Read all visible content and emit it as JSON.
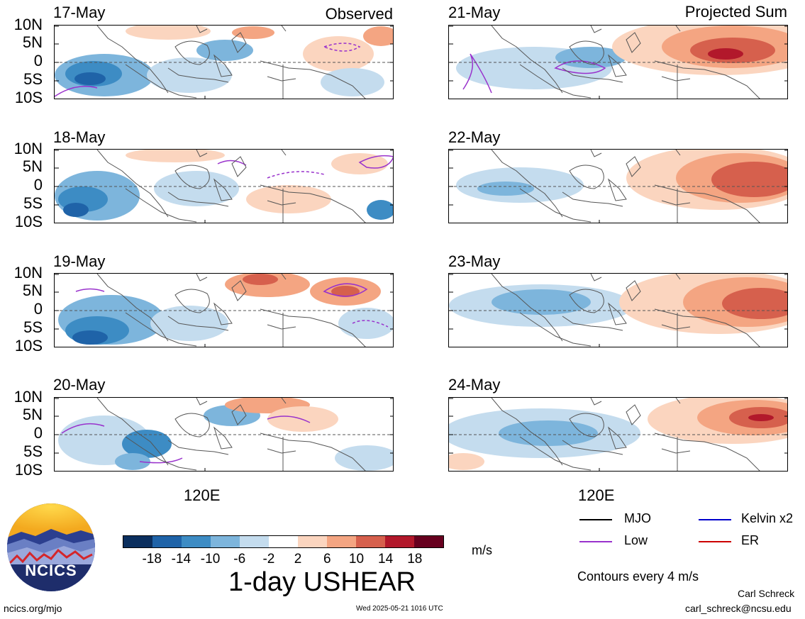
{
  "observed_label": "Observed",
  "projected_label": "Projected Sum",
  "lat_labels": [
    "10N",
    "5N",
    "0",
    "5S",
    "10S"
  ],
  "lon_label": "120E",
  "observed_dates": [
    "17-May",
    "18-May",
    "19-May",
    "20-May"
  ],
  "projected_dates": [
    "21-May",
    "22-May",
    "23-May",
    "24-May"
  ],
  "colorbar": {
    "colors": [
      "#0b2f5e",
      "#1f63a8",
      "#3d8cc4",
      "#7db5dc",
      "#c4dcee",
      "#ffffff",
      "#fbd5bf",
      "#f4a582",
      "#d6604d",
      "#b2182b",
      "#67001f"
    ],
    "ticks": [
      "-18",
      "-14",
      "-10",
      "-6",
      "-2",
      "2",
      "6",
      "10",
      "14",
      "18"
    ],
    "units": "m/s",
    "variable": "1-day USHEAR"
  },
  "legend": {
    "mjo": {
      "label": "MJO",
      "color": "#000000"
    },
    "kelvin": {
      "label": "Kelvin x2",
      "color": "#0000cc"
    },
    "low": {
      "label": "Low",
      "color": "#9932cc"
    },
    "er": {
      "label": "ER",
      "color": "#cc0000"
    },
    "contours": "Contours every 4 m/s"
  },
  "logo_text": "NCICS",
  "footer": {
    "url": "ncics.org/mjo",
    "timestamp": "Wed 2025-05-21 1016 UTC",
    "author": "Carl Schreck",
    "email": "carl_schreck@ncsu.edu"
  }
}
